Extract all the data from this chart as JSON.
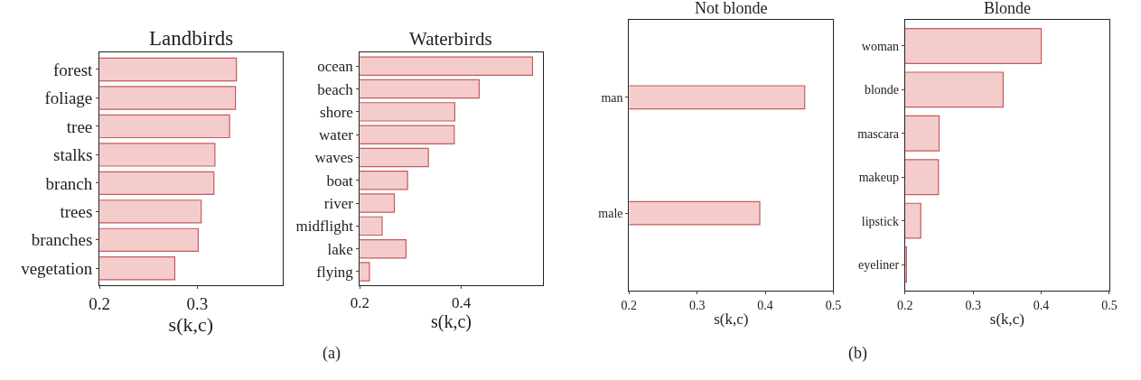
{
  "chart_data": [
    {
      "type": "bar",
      "orientation": "horizontal",
      "title": "Landbirds",
      "xlabel": "s(k,c)",
      "categories": [
        "forest",
        "foliage",
        "tree",
        "stalks",
        "branch",
        "trees",
        "branches",
        "vegetation"
      ],
      "values": [
        0.34,
        0.339,
        0.333,
        0.318,
        0.317,
        0.304,
        0.301,
        0.277
      ],
      "color": "#f5cccc",
      "xlim": [
        0.2,
        0.387
      ],
      "xticks": [
        0.2,
        0.3
      ],
      "annotations": [
        "(a)"
      ]
    },
    {
      "type": "bar",
      "orientation": "horizontal",
      "title": "Waterbirds",
      "xlabel": "s(k,c)",
      "categories": [
        "ocean",
        "beach",
        "shore",
        "water",
        "waves",
        "boat",
        "river",
        "midflight",
        "lake",
        "flying"
      ],
      "values": [
        0.54,
        0.435,
        0.387,
        0.386,
        0.335,
        0.294,
        0.268,
        0.244,
        0.291,
        0.219
      ],
      "color": "#f5cccc",
      "xlim": [
        0.2,
        0.56
      ],
      "xticks": [
        0.2,
        0.4
      ]
    },
    {
      "type": "bar",
      "orientation": "horizontal",
      "title": "Not blonde",
      "xlabel": "s(k,c)",
      "categories": [
        "man",
        "male"
      ],
      "values": [
        0.458,
        0.392
      ],
      "color": "#f5cccc",
      "xlim": [
        0.2,
        0.5
      ],
      "xticks": [
        0.2,
        0.3,
        0.4,
        0.5
      ],
      "annotations": [
        "(b)"
      ]
    },
    {
      "type": "bar",
      "orientation": "horizontal",
      "title": "Blonde",
      "xlabel": "s(k,c)",
      "categories": [
        "woman",
        "blonde",
        "mascara",
        "makeup",
        "lipstick",
        "eyeliner"
      ],
      "values": [
        0.4,
        0.344,
        0.25,
        0.249,
        0.223,
        0.202
      ],
      "color": "#f5cccc",
      "xlim": [
        0.2,
        0.5
      ],
      "xticks": [
        0.2,
        0.3,
        0.4,
        0.5
      ]
    }
  ]
}
